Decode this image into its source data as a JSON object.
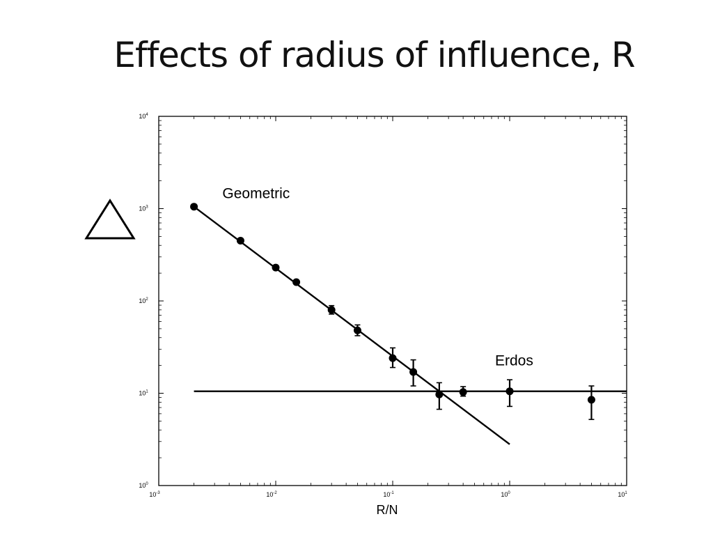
{
  "slide": {
    "title": "Effects of radius of influence, R"
  },
  "chart_data": {
    "type": "line",
    "scale": {
      "x": "log",
      "y": "log"
    },
    "xlim": [
      0.001,
      10
    ],
    "ylim": [
      1,
      10000
    ],
    "xlabel": "R/N",
    "ylabel_symbol": "triangle",
    "grid": false,
    "x_ticks": [
      {
        "base": "10",
        "exp": "-3",
        "value": 0.001
      },
      {
        "base": "10",
        "exp": "-2",
        "value": 0.01
      },
      {
        "base": "10",
        "exp": "-1",
        "value": 0.1
      },
      {
        "base": "10",
        "exp": "0",
        "value": 1
      },
      {
        "base": "10",
        "exp": "1",
        "value": 10
      }
    ],
    "y_ticks": [
      {
        "base": "10",
        "exp": "0",
        "value": 1
      },
      {
        "base": "10",
        "exp": "1",
        "value": 10
      },
      {
        "base": "10",
        "exp": "2",
        "value": 100
      },
      {
        "base": "10",
        "exp": "3",
        "value": 1000
      },
      {
        "base": "10",
        "exp": "4",
        "value": 10000
      }
    ],
    "annotations": [
      {
        "text": "Geometric",
        "x": 0.0035,
        "y": 1300
      },
      {
        "text": "Erdos",
        "x": 0.75,
        "y": 20
      }
    ],
    "fit_lines": [
      {
        "name": "Geometric",
        "x": [
          0.002,
          1.0
        ],
        "y": [
          1050,
          2.8
        ]
      },
      {
        "name": "Erdos",
        "x": [
          0.002,
          10
        ],
        "y": [
          10.5,
          10.5
        ]
      }
    ],
    "points": [
      {
        "x": 0.002,
        "y": 1050,
        "err_low": 1050,
        "err_high": 1050
      },
      {
        "x": 0.005,
        "y": 450,
        "err_low": 450,
        "err_high": 450
      },
      {
        "x": 0.01,
        "y": 230,
        "err_low": 230,
        "err_high": 230
      },
      {
        "x": 0.015,
        "y": 160,
        "err_low": 160,
        "err_high": 160
      },
      {
        "x": 0.03,
        "y": 80,
        "err_low": 72,
        "err_high": 89
      },
      {
        "x": 0.05,
        "y": 48,
        "err_low": 42,
        "err_high": 55
      },
      {
        "x": 0.1,
        "y": 24,
        "err_low": 19,
        "err_high": 31
      },
      {
        "x": 0.15,
        "y": 17,
        "err_low": 12,
        "err_high": 23
      },
      {
        "x": 0.25,
        "y": 9.7,
        "err_low": 6.7,
        "err_high": 13
      },
      {
        "x": 0.4,
        "y": 10.3,
        "err_low": 9.3,
        "err_high": 11.8
      },
      {
        "x": 1.0,
        "y": 10.5,
        "err_low": 7.2,
        "err_high": 14
      },
      {
        "x": 5.0,
        "y": 8.5,
        "err_low": 5.2,
        "err_high": 12
      }
    ]
  }
}
